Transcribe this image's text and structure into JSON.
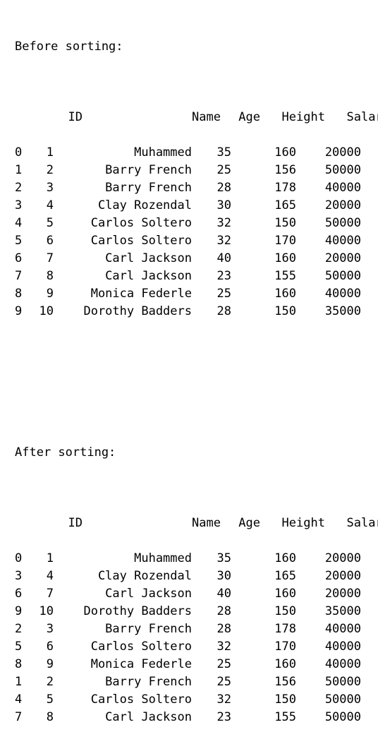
{
  "before": {
    "heading": "Before sorting:",
    "columns": {
      "id": "ID",
      "name": "Name",
      "age": "Age",
      "height": "Height",
      "salary": "Salary"
    },
    "rows": [
      {
        "idx": "0",
        "id": "1",
        "name": "Muhammed",
        "age": "35",
        "height": "160",
        "salary": "20000"
      },
      {
        "idx": "1",
        "id": "2",
        "name": "Barry French",
        "age": "25",
        "height": "156",
        "salary": "50000"
      },
      {
        "idx": "2",
        "id": "3",
        "name": "Barry French",
        "age": "28",
        "height": "178",
        "salary": "40000"
      },
      {
        "idx": "3",
        "id": "4",
        "name": "Clay Rozendal",
        "age": "30",
        "height": "165",
        "salary": "20000"
      },
      {
        "idx": "4",
        "id": "5",
        "name": "Carlos Soltero",
        "age": "32",
        "height": "150",
        "salary": "50000"
      },
      {
        "idx": "5",
        "id": "6",
        "name": "Carlos Soltero",
        "age": "32",
        "height": "170",
        "salary": "40000"
      },
      {
        "idx": "6",
        "id": "7",
        "name": "Carl Jackson",
        "age": "40",
        "height": "160",
        "salary": "20000"
      },
      {
        "idx": "7",
        "id": "8",
        "name": "Carl Jackson",
        "age": "23",
        "height": "155",
        "salary": "50000"
      },
      {
        "idx": "8",
        "id": "9",
        "name": "Monica Federle",
        "age": "25",
        "height": "160",
        "salary": "40000"
      },
      {
        "idx": "9",
        "id": "10",
        "name": "Dorothy Badders",
        "age": "28",
        "height": "150",
        "salary": "35000"
      }
    ]
  },
  "after": {
    "heading": "After sorting:",
    "columns": {
      "id": "ID",
      "name": "Name",
      "age": "Age",
      "height": "Height",
      "salary": "Salary"
    },
    "rows": [
      {
        "idx": "0",
        "id": "1",
        "name": "Muhammed",
        "age": "35",
        "height": "160",
        "salary": "20000"
      },
      {
        "idx": "3",
        "id": "4",
        "name": "Clay Rozendal",
        "age": "30",
        "height": "165",
        "salary": "20000"
      },
      {
        "idx": "6",
        "id": "7",
        "name": "Carl Jackson",
        "age": "40",
        "height": "160",
        "salary": "20000"
      },
      {
        "idx": "9",
        "id": "10",
        "name": "Dorothy Badders",
        "age": "28",
        "height": "150",
        "salary": "35000"
      },
      {
        "idx": "2",
        "id": "3",
        "name": "Barry French",
        "age": "28",
        "height": "178",
        "salary": "40000"
      },
      {
        "idx": "5",
        "id": "6",
        "name": "Carlos Soltero",
        "age": "32",
        "height": "170",
        "salary": "40000"
      },
      {
        "idx": "8",
        "id": "9",
        "name": "Monica Federle",
        "age": "25",
        "height": "160",
        "salary": "40000"
      },
      {
        "idx": "1",
        "id": "2",
        "name": "Barry French",
        "age": "25",
        "height": "156",
        "salary": "50000"
      },
      {
        "idx": "4",
        "id": "5",
        "name": "Carlos Soltero",
        "age": "32",
        "height": "150",
        "salary": "50000"
      },
      {
        "idx": "7",
        "id": "8",
        "name": "Carl Jackson",
        "age": "23",
        "height": "155",
        "salary": "50000"
      }
    ]
  }
}
